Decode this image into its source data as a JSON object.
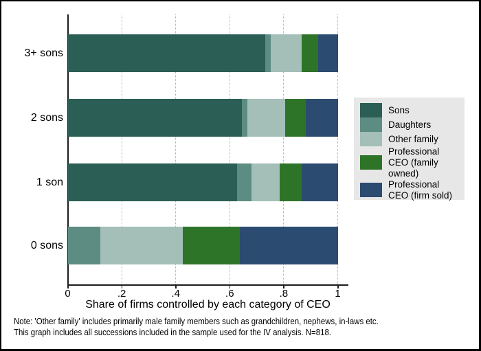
{
  "chart_data": {
    "type": "bar",
    "orientation": "horizontal",
    "stacked": true,
    "title": "",
    "xlabel": "Share of firms controlled by each category of CEO",
    "ylabel": "",
    "xlim": [
      0,
      1
    ],
    "x_ticks": [
      "0",
      ".2",
      ".4",
      ".6",
      ".8",
      "1"
    ],
    "x_tick_values": [
      0,
      0.2,
      0.4,
      0.6,
      0.8,
      1
    ],
    "grid": "vertical-dotted",
    "legend_position": "right",
    "categories": [
      "3+ sons",
      "2 sons",
      "1 son",
      "0 sons"
    ],
    "series": [
      {
        "name": "Sons",
        "color": "#2b5e54",
        "values": [
          0.73,
          0.645,
          0.625,
          0
        ]
      },
      {
        "name": "Daughters",
        "color": "#5c8c82",
        "values": [
          0.02,
          0.02,
          0.055,
          0.12
        ]
      },
      {
        "name": "Other family",
        "color": "#a3bfb8",
        "values": [
          0.115,
          0.14,
          0.105,
          0.305
        ]
      },
      {
        "name": "Professional CEO (family owned)",
        "color": "#2e7428",
        "values": [
          0.06,
          0.075,
          0.08,
          0.21
        ]
      },
      {
        "name": "Professional CEO (firm sold)",
        "color": "#2b4b70",
        "values": [
          0.075,
          0.12,
          0.135,
          0.365
        ]
      }
    ]
  },
  "legend": {
    "background": "#e7e7e7"
  },
  "note": {
    "line1": "Note: 'Other family' includes primarily male family members such as grandchildren, nephews, in-laws etc.",
    "line2": "This graph includes all successions included in the sample used for the IV analysis. N=818."
  },
  "colors": {
    "axis": "#1c1c1c",
    "gridline": "#b3b3b3",
    "frame_border": "#000000",
    "background": "#ffffff"
  }
}
